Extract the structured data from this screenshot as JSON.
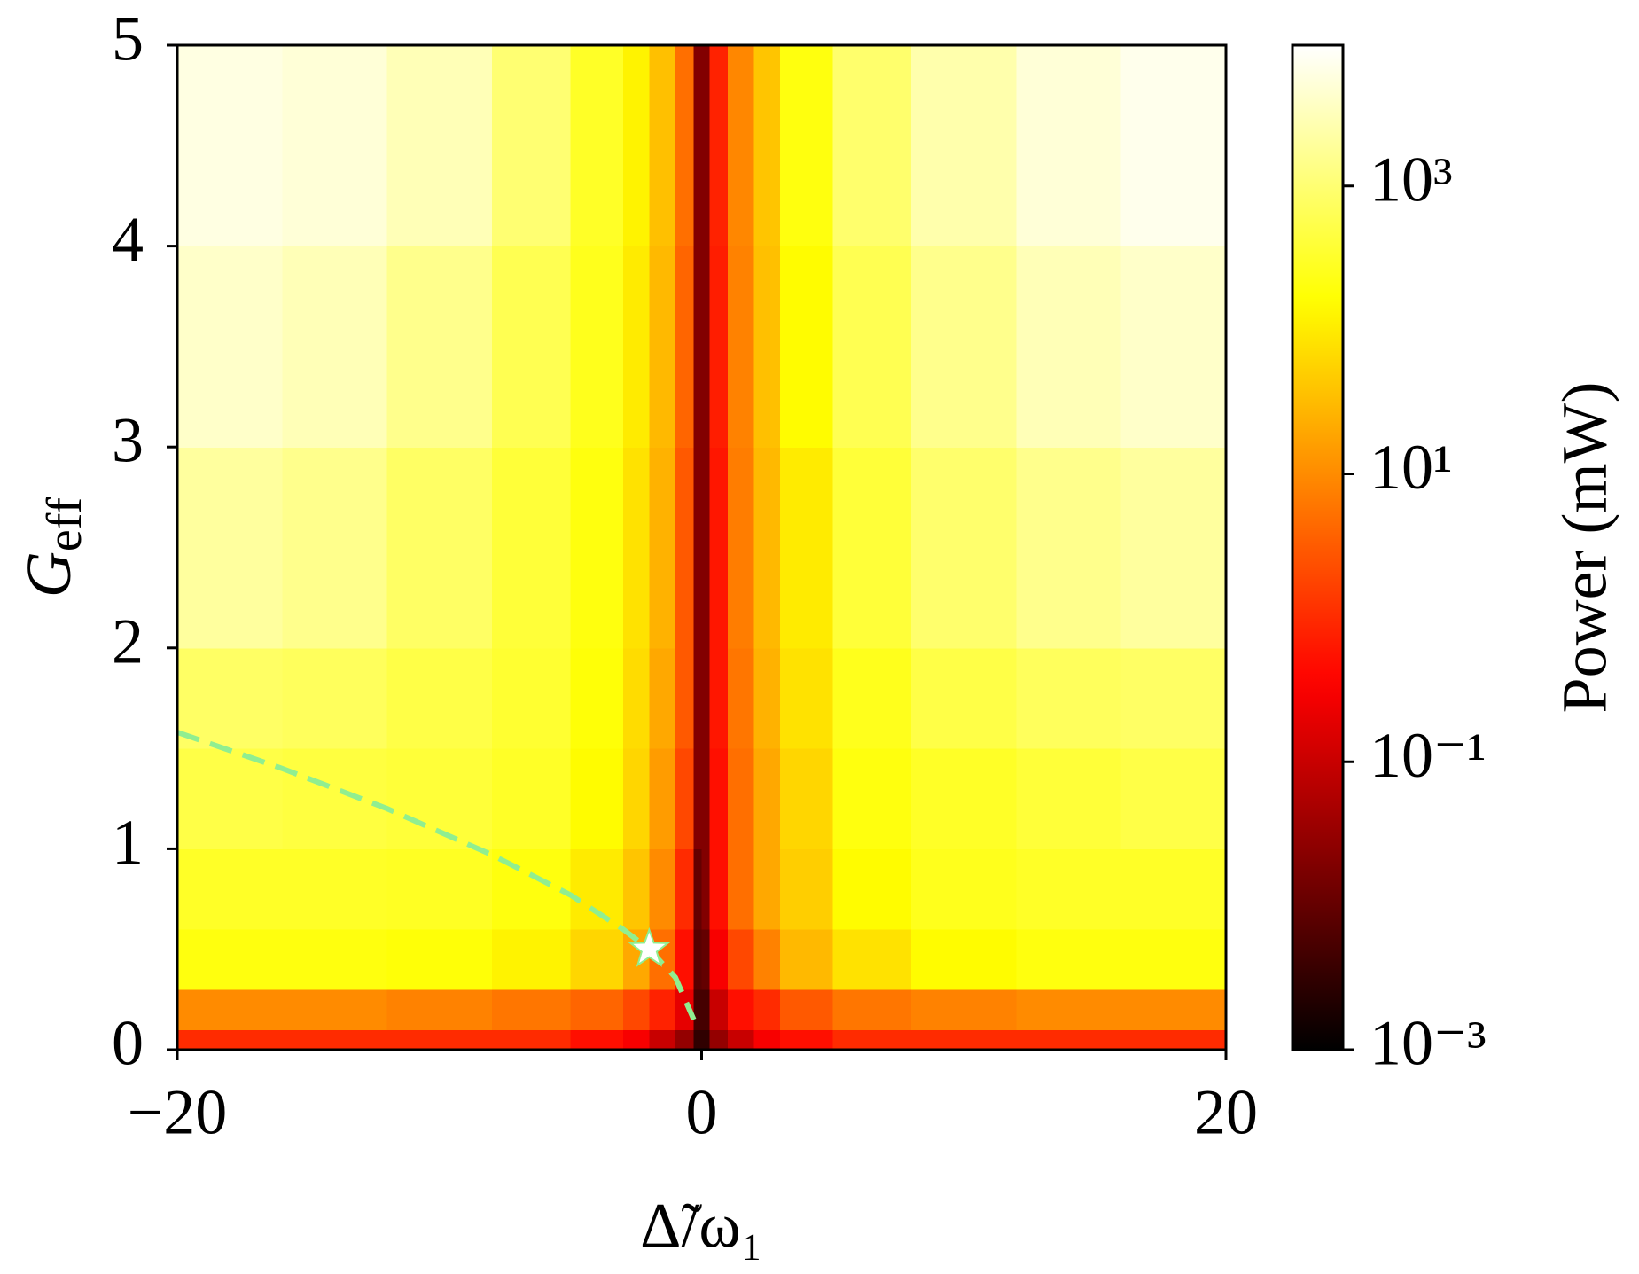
{
  "chart_data": {
    "type": "heatmap",
    "xlabel": "Δ̃/ω₁",
    "ylabel": "G",
    "ylabel_sub": "eff",
    "colorbar_label": "Power (mW)",
    "cmap": "hot",
    "color_scale": "log",
    "x_edges": [
      -20,
      -16,
      -12,
      -8,
      -5,
      -3,
      -2,
      -1,
      -0.3,
      0,
      0.3,
      1,
      2,
      3,
      5,
      8,
      12,
      16,
      20
    ],
    "y_edges": [
      0,
      0.1,
      0.3,
      0.6,
      1,
      1.5,
      2,
      3,
      4,
      5
    ],
    "z": [
      [
        1,
        1,
        1,
        1,
        0.5,
        0.3,
        0.1,
        0.03,
        0.003,
        0.003,
        0.03,
        0.1,
        0.3,
        0.5,
        1,
        1,
        1,
        1
      ],
      [
        10,
        10,
        8,
        6,
        4,
        2,
        0.8,
        0.2,
        0.005,
        0.005,
        0.1,
        0.5,
        1,
        3,
        6,
        8,
        10,
        10
      ],
      [
        200,
        200,
        180,
        120,
        60,
        20,
        5,
        0.5,
        0.008,
        0.01,
        0.3,
        2,
        8,
        30,
        80,
        150,
        200,
        200
      ],
      [
        300,
        300,
        280,
        200,
        100,
        40,
        10,
        1,
        0.01,
        0.02,
        0.5,
        5,
        20,
        50,
        150,
        250,
        300,
        300
      ],
      [
        500,
        450,
        400,
        300,
        150,
        60,
        15,
        2,
        0.02,
        0.02,
        0.5,
        5,
        20,
        60,
        200,
        300,
        400,
        500
      ],
      [
        800,
        700,
        500,
        350,
        180,
        70,
        20,
        3,
        0.02,
        0.02,
        0.6,
        6,
        25,
        80,
        250,
        500,
        700,
        800
      ],
      [
        2000,
        1500,
        800,
        400,
        200,
        80,
        25,
        3,
        0.02,
        0.02,
        0.6,
        7,
        30,
        100,
        400,
        900,
        1500,
        2000
      ],
      [
        4000,
        3000,
        1500,
        600,
        250,
        100,
        30,
        4,
        0.02,
        0.02,
        0.7,
        8,
        35,
        150,
        600,
        1500,
        3000,
        4000
      ],
      [
        6000,
        5000,
        3000,
        1000,
        300,
        120,
        35,
        5,
        0.02,
        0.02,
        0.8,
        9,
        40,
        200,
        900,
        2500,
        5000,
        7000
      ]
    ],
    "clim": [
      0.001,
      9500
    ],
    "cticks": [
      {
        "value": 0.001,
        "label": "10⁻³"
      },
      {
        "value": 0.1,
        "label": "10⁻¹"
      },
      {
        "value": 10,
        "label": "10¹"
      },
      {
        "value": 1000,
        "label": "10³"
      }
    ],
    "curve": {
      "color": "#90ee90",
      "x": [
        -20,
        -16,
        -12,
        -8,
        -5,
        -3,
        -2,
        -1,
        -0.3
      ],
      "y": [
        1.58,
        1.4,
        1.2,
        0.97,
        0.77,
        0.6,
        0.5,
        0.36,
        0.15
      ]
    },
    "marker": {
      "color": "#ffffff",
      "x": -2,
      "y": 0.5
    },
    "xlim": [
      -20,
      20
    ],
    "xticks": [
      {
        "value": -20,
        "label": "−20"
      },
      0,
      20
    ],
    "ylim": [
      0,
      5
    ],
    "yticks": [
      0,
      1,
      2,
      3,
      4,
      5
    ]
  }
}
